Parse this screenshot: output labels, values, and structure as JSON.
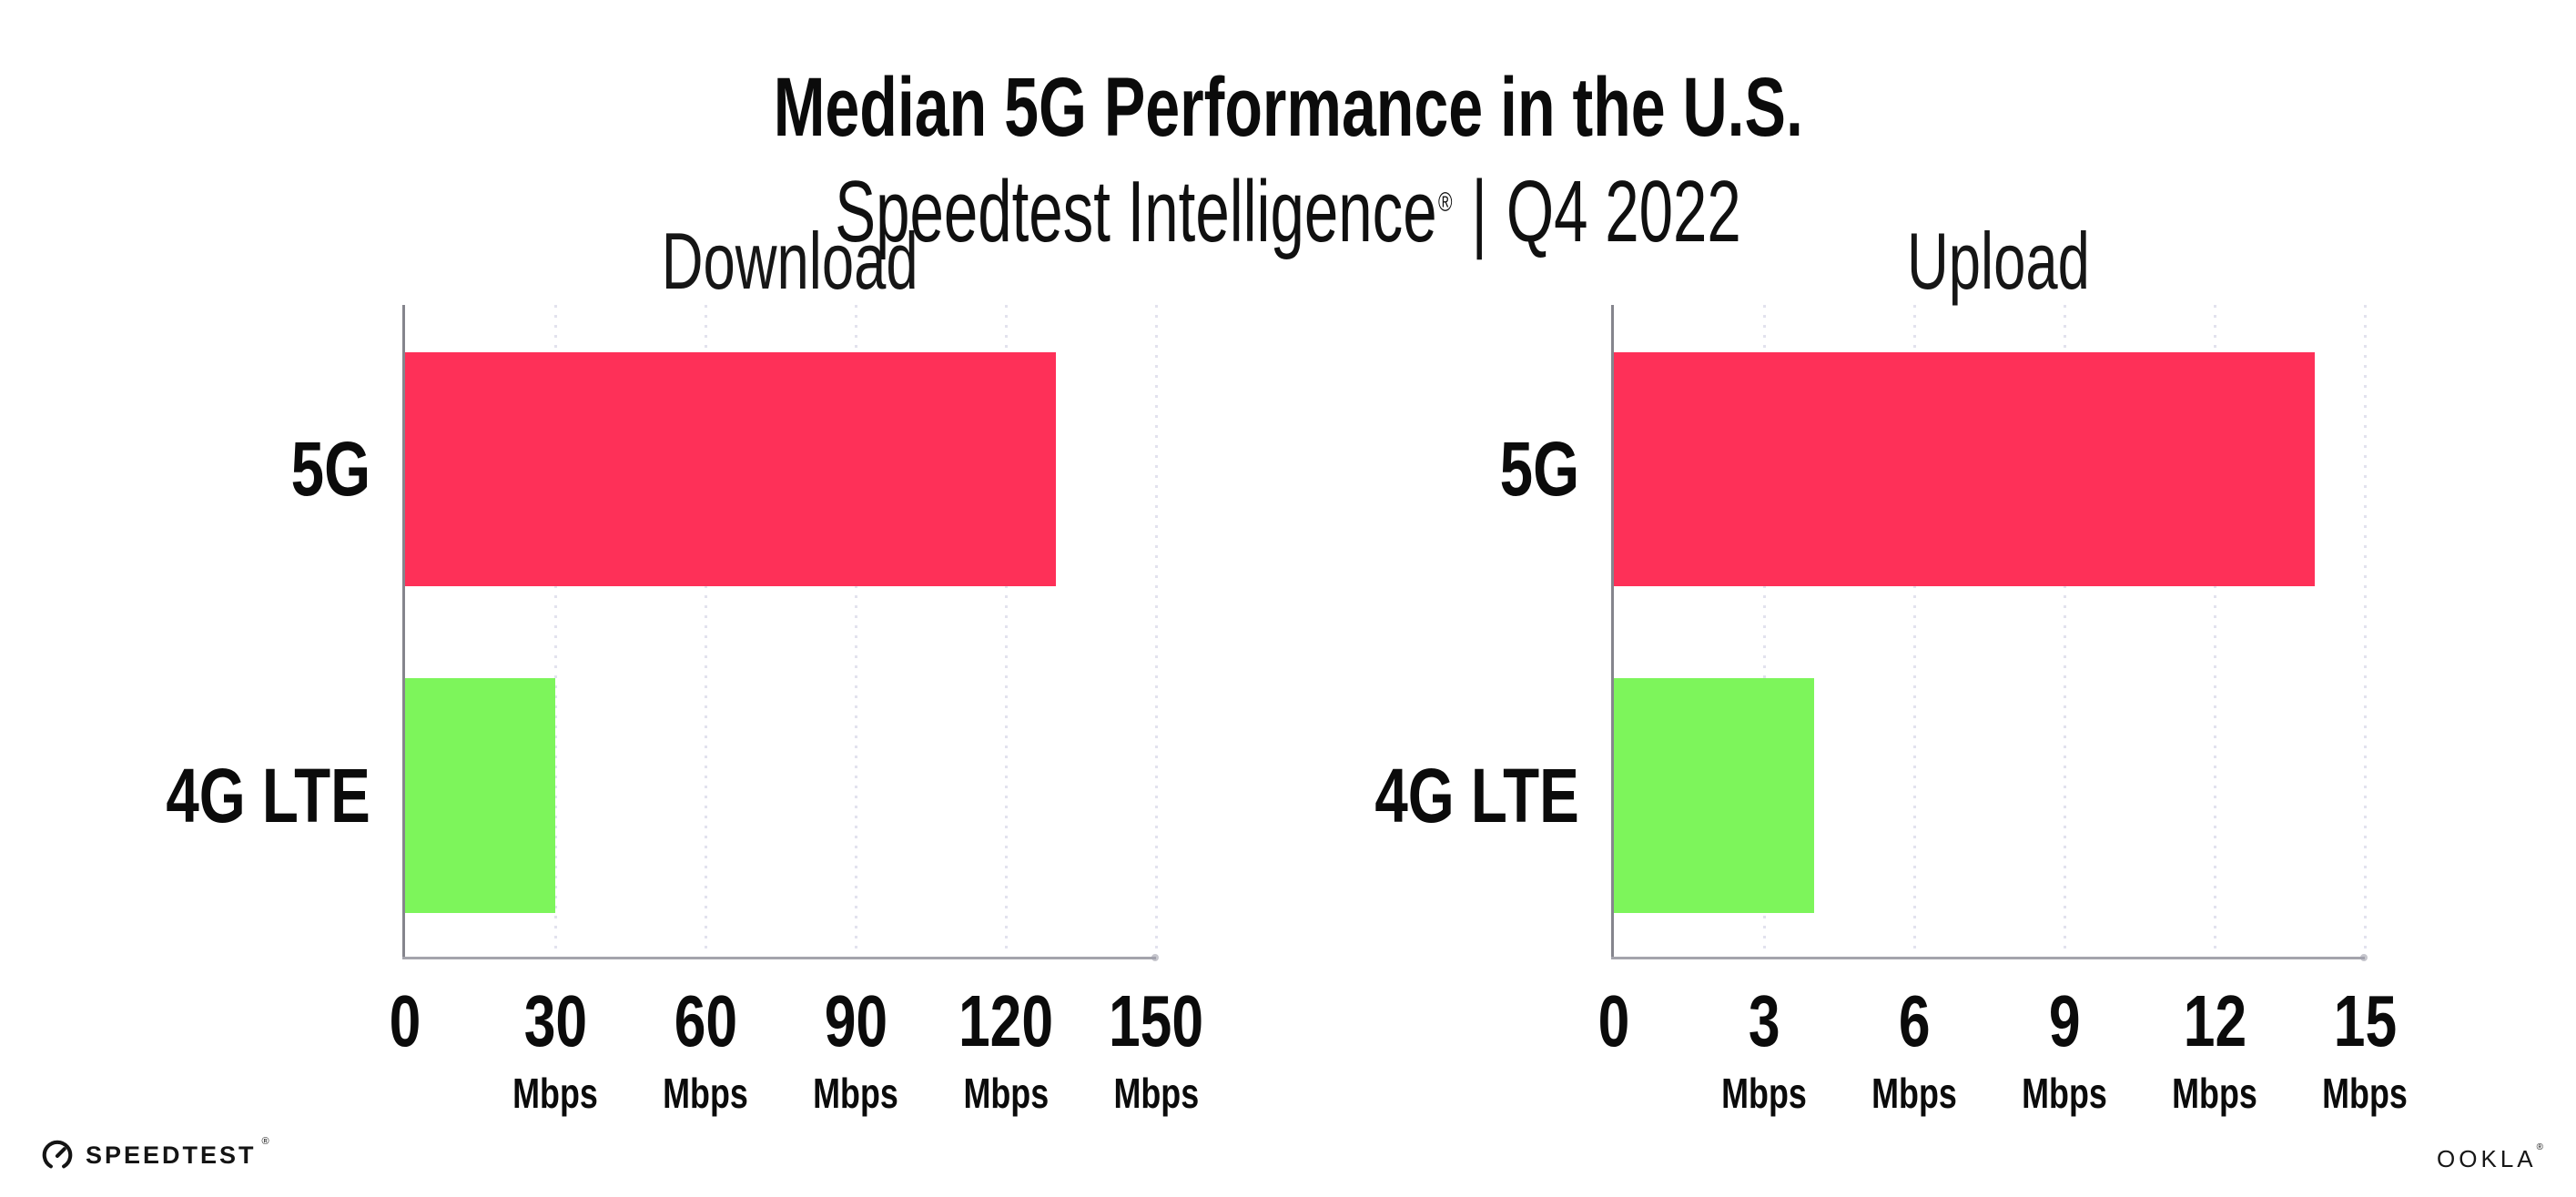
{
  "header": {
    "title": "Median 5G Performance in the U.S.",
    "subtitle_brand": "Speedtest Intelligence",
    "subtitle_trademark": "®",
    "subtitle_separator": "|",
    "subtitle_period": "Q4 2022"
  },
  "chart_data": [
    {
      "type": "bar",
      "orientation": "horizontal",
      "title": "Download",
      "categories": [
        "5G",
        "4G LTE"
      ],
      "values": [
        130,
        30
      ],
      "unit": "Mbps",
      "xlabel": "",
      "xlim": [
        0,
        150
      ],
      "xticks": [
        0,
        30,
        60,
        90,
        120,
        150
      ],
      "bar_colors": [
        "#FE3058",
        "#7DF55B"
      ],
      "grid": "dotted-vertical-gridlines",
      "legend": "none"
    },
    {
      "type": "bar",
      "orientation": "horizontal",
      "title": "Upload",
      "categories": [
        "5G",
        "4G LTE"
      ],
      "values": [
        14,
        4
      ],
      "unit": "Mbps",
      "xlabel": "",
      "xlim": [
        0,
        15
      ],
      "xticks": [
        0,
        3,
        6,
        9,
        12,
        15
      ],
      "bar_colors": [
        "#FE3058",
        "#7DF55B"
      ],
      "grid": "dotted-vertical-gridlines",
      "legend": "none"
    }
  ],
  "footer": {
    "speedtest_wordmark": "SPEEDTEST",
    "speedtest_trademark": "®",
    "ookla_wordmark": "OOKLA",
    "ookla_trademark": "®"
  },
  "colors": {
    "bar_5g": "#FE3058",
    "bar_4g_lte": "#7DF55B",
    "text": "#0f0f0f",
    "y_axis_line": "#85858d",
    "x_axis_line": "#a4a4ac",
    "gridline": "#e2e2ee",
    "background": "#FFFFFF"
  }
}
